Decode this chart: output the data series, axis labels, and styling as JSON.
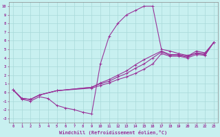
{
  "xlabel": "Windchill (Refroidissement éolien,°C)",
  "bg_color": "#c8f0f0",
  "line_color": "#993399",
  "grid_color": "#a8d8d8",
  "xlim": [
    -0.5,
    23.5
  ],
  "ylim": [
    -3.5,
    10.5
  ],
  "xticks": [
    0,
    1,
    2,
    3,
    4,
    5,
    6,
    7,
    8,
    9,
    10,
    11,
    12,
    13,
    14,
    15,
    16,
    17,
    18,
    19,
    20,
    21,
    22,
    23
  ],
  "yticks": [
    -3,
    -2,
    -1,
    0,
    1,
    2,
    3,
    4,
    5,
    6,
    7,
    8,
    9,
    10
  ],
  "curve1_x": [
    0,
    1,
    2,
    3,
    4,
    5,
    6,
    7,
    8,
    9,
    10,
    11,
    12,
    13,
    14,
    15,
    16,
    17,
    18,
    19,
    20,
    21,
    22,
    23
  ],
  "curve1_y": [
    0.3,
    -0.8,
    -1.0,
    -0.5,
    -0.7,
    -1.5,
    -1.8,
    -2.0,
    -2.3,
    -2.5,
    3.3,
    6.5,
    8.0,
    9.0,
    9.5,
    10.0,
    10.0,
    5.0,
    4.8,
    4.5,
    4.3,
    4.5,
    4.4,
    5.8
  ],
  "curve2_x": [
    0,
    1,
    2,
    3,
    5,
    9,
    10,
    11,
    12,
    13,
    14,
    15,
    16,
    17,
    18,
    19,
    20,
    21,
    22,
    23
  ],
  "curve2_y": [
    0.3,
    -0.7,
    -0.8,
    -0.3,
    0.2,
    0.5,
    0.8,
    1.1,
    1.5,
    1.8,
    2.2,
    2.7,
    3.3,
    4.5,
    4.2,
    4.2,
    4.0,
    4.4,
    4.3,
    5.8
  ],
  "curve3_x": [
    0,
    1,
    2,
    3,
    5,
    9,
    10,
    11,
    12,
    13,
    14,
    15,
    16,
    17,
    18,
    19,
    20,
    21,
    22,
    23
  ],
  "curve3_y": [
    0.3,
    -0.7,
    -0.8,
    -0.3,
    0.2,
    0.6,
    1.0,
    1.3,
    1.8,
    2.2,
    2.8,
    3.3,
    4.0,
    4.7,
    4.3,
    4.3,
    4.1,
    4.6,
    4.5,
    5.8
  ],
  "curve4_x": [
    0,
    1,
    2,
    3,
    5,
    9,
    10,
    11,
    12,
    13,
    14,
    15,
    17,
    18,
    19,
    20,
    21,
    22,
    23
  ],
  "curve4_y": [
    0.3,
    -0.7,
    -0.8,
    -0.3,
    0.2,
    0.6,
    1.1,
    1.5,
    2.0,
    2.5,
    3.2,
    3.8,
    4.8,
    4.4,
    4.4,
    4.2,
    4.8,
    4.6,
    5.8
  ]
}
